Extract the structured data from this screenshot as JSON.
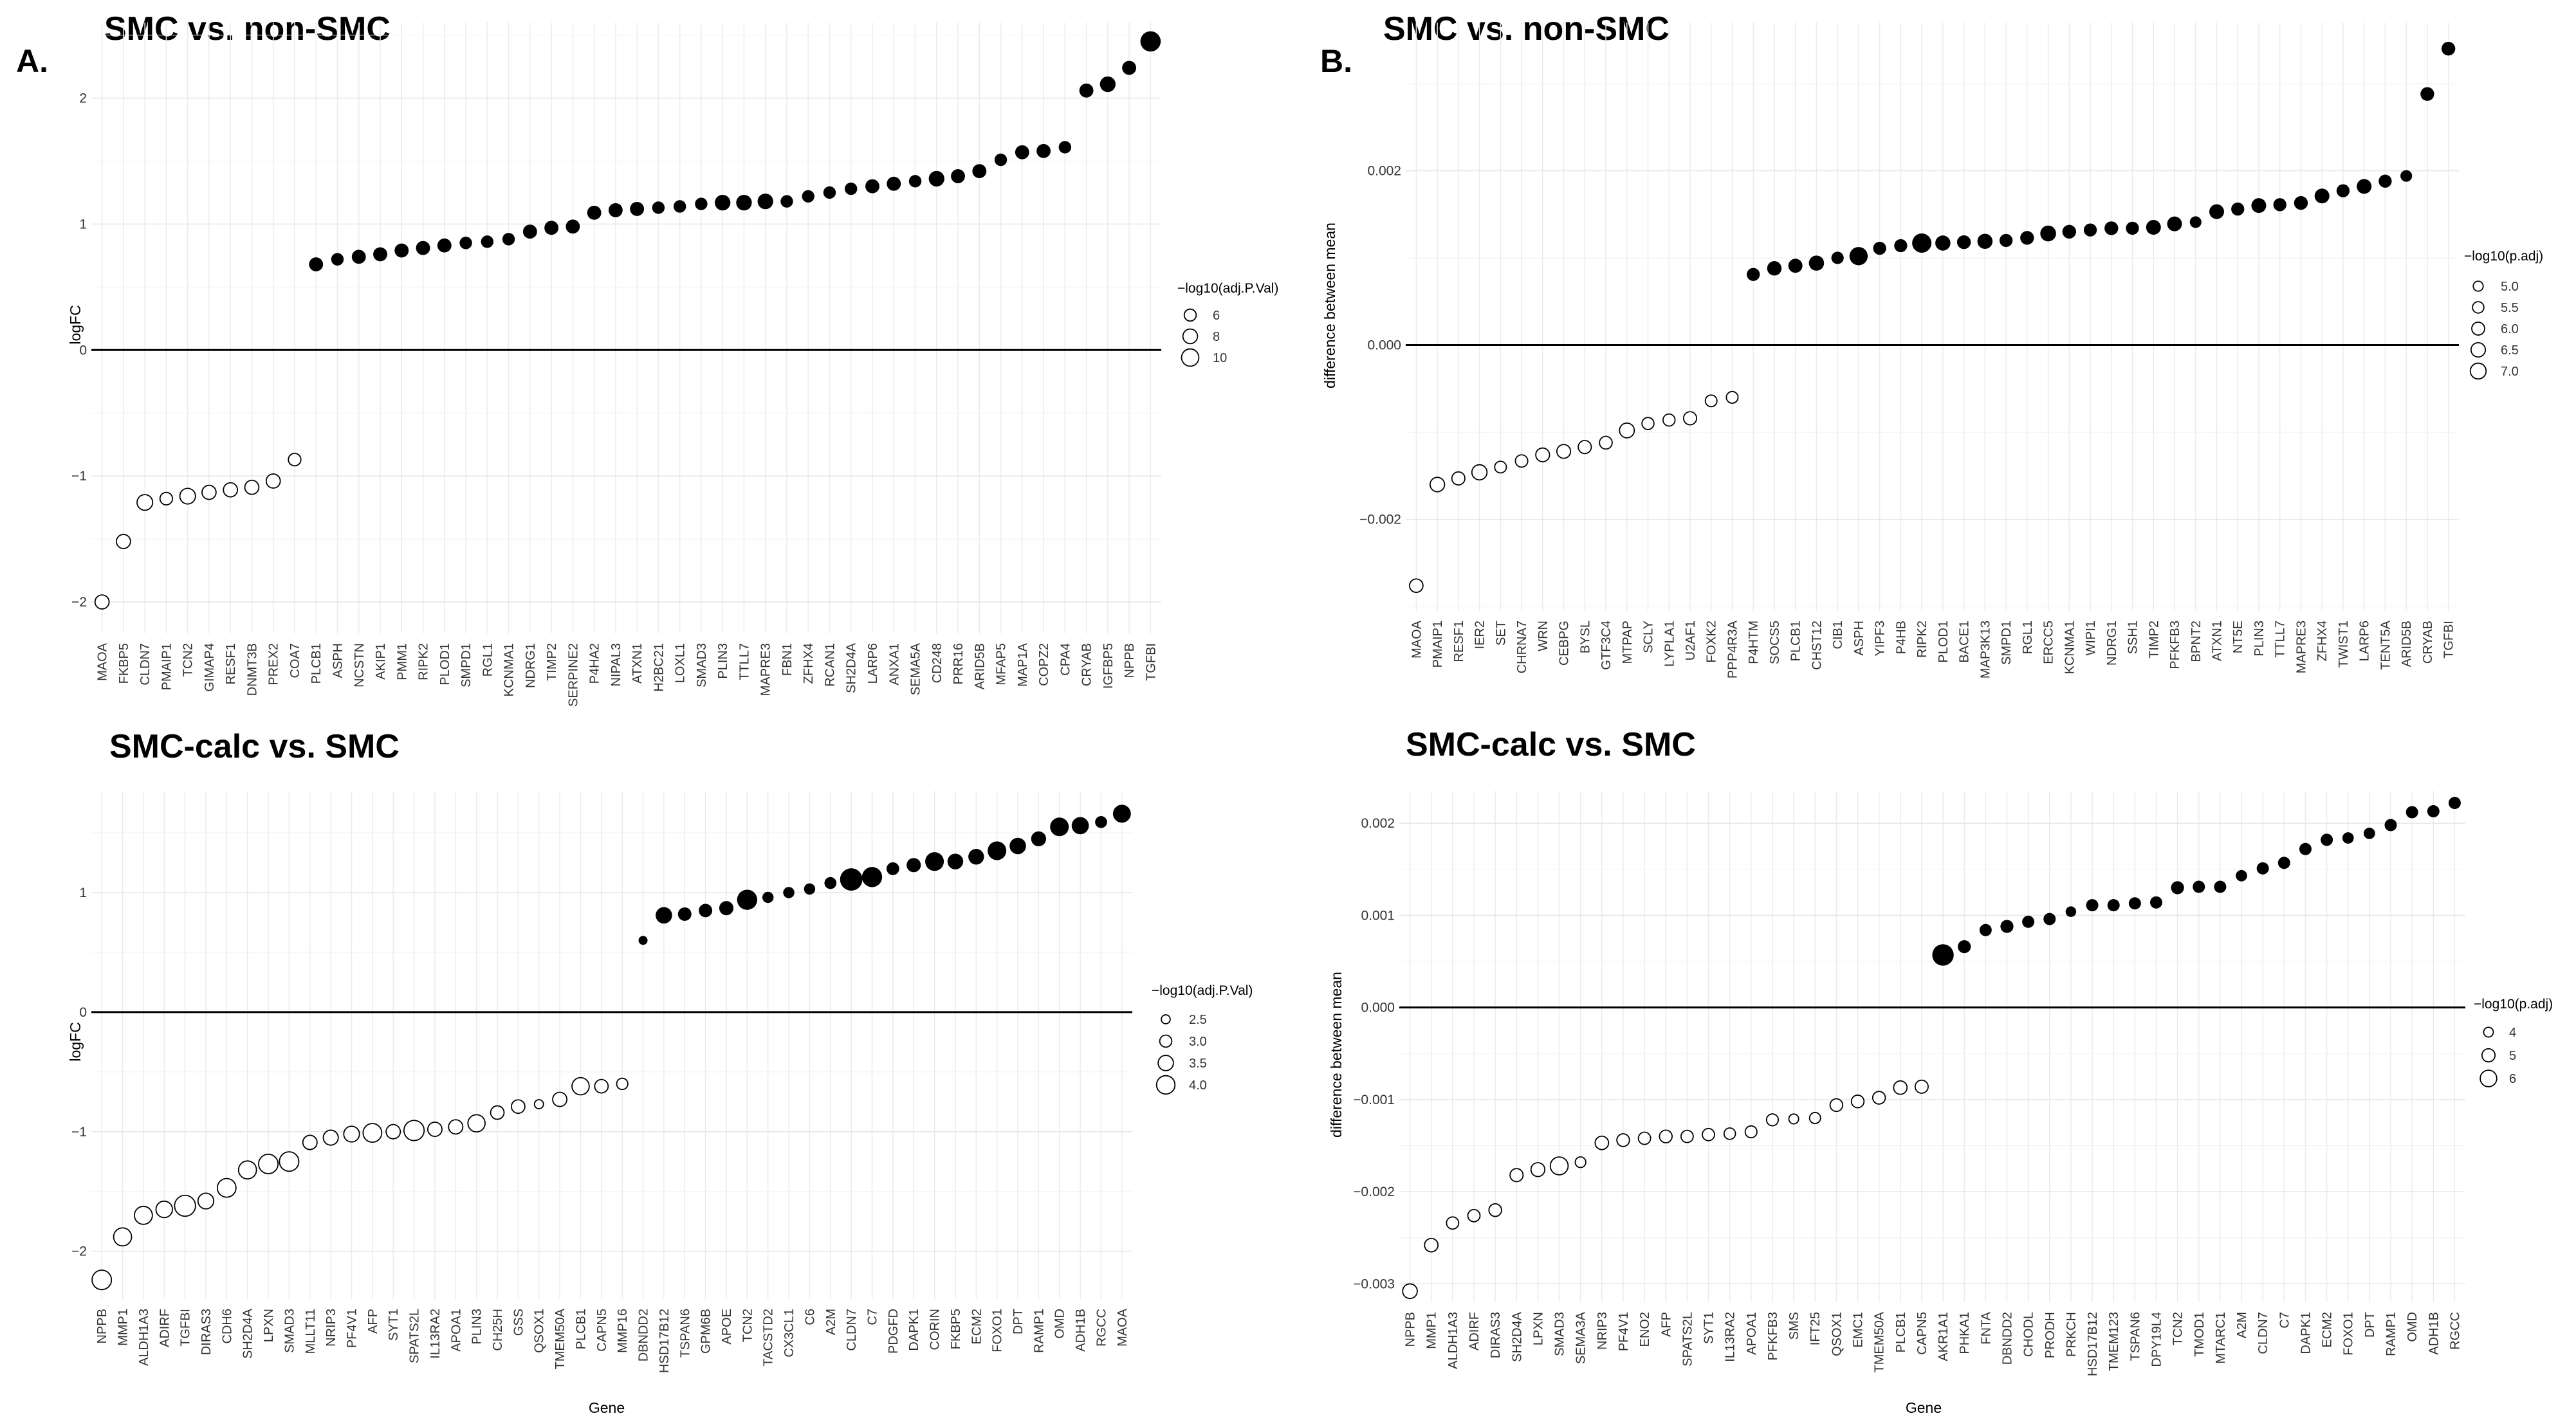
{
  "panels": [
    {
      "id": "tl",
      "label": "A.",
      "title": "SMC vs. non-SMC",
      "ylabel": "logFC",
      "xlabel": "",
      "legend_title": "−log10(adj.P.Val)",
      "legend_items": [
        {
          "label": "6",
          "size": 6
        },
        {
          "label": "8",
          "size": 8
        },
        {
          "label": "10",
          "size": 10
        }
      ],
      "yticks": [
        {
          "label": "−2",
          "v": -2
        },
        {
          "label": "−1",
          "v": -1
        },
        {
          "label": "0",
          "v": 0
        },
        {
          "label": "1",
          "v": 1
        },
        {
          "label": "2",
          "v": 2
        }
      ]
    },
    {
      "id": "tr",
      "label": "B.",
      "title": "SMC vs. non-SMC",
      "ylabel": "difference between mean",
      "xlabel": "",
      "legend_title": "−log10(p.adj)",
      "legend_items": [
        {
          "label": "5.0",
          "size": 5.0
        },
        {
          "label": "5.5",
          "size": 5.5
        },
        {
          "label": "6.0",
          "size": 6.0
        },
        {
          "label": "6.5",
          "size": 6.5
        },
        {
          "label": "7.0",
          "size": 7.0
        }
      ],
      "yticks": [
        {
          "label": "−0.002",
          "v": -0.002
        },
        {
          "label": "0.000",
          "v": 0
        },
        {
          "label": "0.002",
          "v": 0.002
        }
      ]
    },
    {
      "id": "bl",
      "label": "",
      "title": "SMC-calc vs. SMC",
      "ylabel": "logFC",
      "xlabel": "Gene",
      "legend_title": "−log10(adj.P.Val)",
      "legend_items": [
        {
          "label": "2.5",
          "size": 2.5
        },
        {
          "label": "3.0",
          "size": 3.0
        },
        {
          "label": "3.5",
          "size": 3.5
        },
        {
          "label": "4.0",
          "size": 4.0
        }
      ],
      "yticks": [
        {
          "label": "−2",
          "v": -2
        },
        {
          "label": "−1",
          "v": -1
        },
        {
          "label": "0",
          "v": 0
        },
        {
          "label": "1",
          "v": 1
        }
      ]
    },
    {
      "id": "br",
      "label": "",
      "title": "SMC-calc vs. SMC",
      "ylabel": "difference between mean",
      "xlabel": "Gene",
      "legend_title": "−log10(p.adj)",
      "legend_items": [
        {
          "label": "4",
          "size": 4
        },
        {
          "label": "5",
          "size": 5
        },
        {
          "label": "6",
          "size": 6
        }
      ],
      "yticks": [
        {
          "label": "−0.003",
          "v": -0.003
        },
        {
          "label": "−0.002",
          "v": -0.002
        },
        {
          "label": "−0.001",
          "v": -0.001
        },
        {
          "label": "0.000",
          "v": 0
        },
        {
          "label": "0.001",
          "v": 0.001
        },
        {
          "label": "0.002",
          "v": 0.002
        }
      ]
    }
  ],
  "chart_data": [
    {
      "type": "scatter",
      "title": "SMC vs. non-SMC",
      "xlabel": "",
      "ylabel": "logFC",
      "ylim": [
        -2.25,
        2.6
      ],
      "size_variable": "−log10(adj.P.Val)",
      "size_range": [
        4,
        11
      ],
      "filled_when": "positive",
      "genes": [
        "MAOA",
        "FKBP5",
        "CLDN7",
        "PMAIP1",
        "TCN2",
        "GIMAP4",
        "RESF1",
        "DNMT3B",
        "PREX2",
        "COA7",
        "PLCB1",
        "ASPH",
        "NCSTN",
        "AKIP1",
        "PMM1",
        "RIPK2",
        "PLOD1",
        "SMPD1",
        "RGL1",
        "KCNMA1",
        "NDRG1",
        "TIMP2",
        "SERPINE2",
        "P4HA2",
        "NIPAL3",
        "ATXN1",
        "H2BC21",
        "LOXL1",
        "SMAD3",
        "PLIN3",
        "TTLL7",
        "MAPRE3",
        "FBN1",
        "ZFHX4",
        "RCAN1",
        "SH2D4A",
        "LARP6",
        "ANXA1",
        "SEMA5A",
        "CD248",
        "PRR16",
        "ARID5B",
        "MFAP5",
        "MAP1A",
        "COPZ2",
        "CPA4",
        "CRYAB",
        "IGFBP5",
        "NPPB",
        "TGFBI"
      ],
      "values": [
        -2.0,
        -1.52,
        -1.21,
        -1.18,
        -1.16,
        -1.13,
        -1.11,
        -1.09,
        -1.04,
        -0.87,
        0.68,
        0.72,
        0.74,
        0.76,
        0.79,
        0.81,
        0.83,
        0.85,
        0.86,
        0.88,
        0.94,
        0.97,
        0.98,
        1.09,
        1.11,
        1.12,
        1.13,
        1.14,
        1.16,
        1.17,
        1.17,
        1.18,
        1.18,
        1.22,
        1.25,
        1.28,
        1.3,
        1.32,
        1.34,
        1.36,
        1.38,
        1.42,
        1.51,
        1.57,
        1.58,
        1.61,
        2.06,
        2.11,
        2.24,
        2.45
      ],
      "sizes": [
        6,
        6,
        7,
        5,
        7,
        6,
        6,
        6,
        6,
        5,
        6,
        5,
        6,
        6,
        6,
        6,
        6,
        5,
        5,
        5,
        6,
        6,
        6,
        6,
        6,
        6,
        5,
        5,
        5,
        7,
        7,
        7,
        5,
        5,
        5,
        5,
        6,
        6,
        5,
        7,
        6,
        6,
        5,
        6,
        6,
        5,
        6,
        7,
        6,
        10
      ]
    },
    {
      "type": "scatter",
      "title": "SMC vs. non-SMC",
      "xlabel": "",
      "ylabel": "difference between mean",
      "ylim": [
        -0.00305,
        0.0037
      ],
      "size_variable": "−log10(p.adj)",
      "size_range": [
        4.6,
        7.2
      ],
      "filled_when": "positive",
      "genes": [
        "MAOA",
        "PMAIP1",
        "RESF1",
        "IER2",
        "SET",
        "CHRNA7",
        "WRN",
        "CEBPG",
        "BYSL",
        "GTF3C4",
        "MTPAP",
        "SCLY",
        "LYPLA1",
        "U2AF1",
        "FOXK2",
        "PPP4R3A",
        "P4HTM",
        "SOCS5",
        "PLCB1",
        "CHST12",
        "CIB1",
        "ASPH",
        "YIPF3",
        "P4HB",
        "RIPK2",
        "PLOD1",
        "BACE1",
        "MAP3K13",
        "SMPD1",
        "RGL1",
        "ERCC5",
        "KCNMA1",
        "WIPI1",
        "NDRG1",
        "SSH1",
        "TIMP2",
        "PFKFB3",
        "BPNT2",
        "ATXN1",
        "NT5E",
        "PLIN3",
        "TTLL7",
        "MAPRE3",
        "ZFHX4",
        "TWIST1",
        "LARP6",
        "TENT5A",
        "ARID5B",
        "CRYAB",
        "TGFBI"
      ],
      "values": [
        -0.00276,
        -0.0016,
        -0.00153,
        -0.00146,
        -0.0014,
        -0.00133,
        -0.00126,
        -0.00122,
        -0.00117,
        -0.00112,
        -0.00098,
        -0.0009,
        -0.00086,
        -0.00084,
        -0.00064,
        -0.0006,
        0.00081,
        0.00088,
        0.00091,
        0.00094,
        0.001,
        0.00102,
        0.00111,
        0.00114,
        0.00117,
        0.00117,
        0.00118,
        0.00119,
        0.0012,
        0.00123,
        0.00128,
        0.0013,
        0.00132,
        0.00134,
        0.00134,
        0.00135,
        0.00139,
        0.00141,
        0.00153,
        0.00156,
        0.0016,
        0.00161,
        0.00163,
        0.00171,
        0.00177,
        0.00182,
        0.00188,
        0.00194,
        0.00288,
        0.0034
      ],
      "sizes": [
        5.5,
        5.8,
        5.4,
        6.0,
        5.0,
        5.2,
        5.6,
        5.6,
        5.4,
        5.3,
        5.9,
        5.1,
        5.1,
        5.4,
        5.0,
        5.0,
        5.4,
        5.8,
        5.7,
        6.0,
        5.2,
        6.9,
        5.4,
        5.4,
        7.2,
        6.0,
        5.6,
        6.0,
        5.4,
        5.6,
        6.2,
        5.6,
        5.4,
        5.6,
        5.4,
        5.9,
        5.9,
        5.0,
        5.9,
        5.4,
        5.9,
        5.4,
        5.6,
        5.9,
        5.4,
        5.9,
        5.4,
        5.0,
        5.6,
        5.6
      ]
    },
    {
      "type": "scatter",
      "title": "SMC-calc vs. SMC",
      "xlabel": "Gene",
      "ylabel": "logFC",
      "ylim": [
        -2.4,
        1.85
      ],
      "size_variable": "−log10(adj.P.Val)",
      "size_range": [
        2.3,
        4.2
      ],
      "filled_when": "positive",
      "genes": [
        "NPPB",
        "MMP1",
        "ALDH1A3",
        "ADIRF",
        "TGFBI",
        "DIRAS3",
        "CDH6",
        "SH2D4A",
        "LPXN",
        "SMAD3",
        "MLLT11",
        "NRIP3",
        "PF4V1",
        "AFP",
        "SYT1",
        "SPATS2L",
        "IL13RA2",
        "APOA1",
        "PLIN3",
        "CH25H",
        "GSS",
        "QSOX1",
        "TMEM50A",
        "PLCB1",
        "CAPN5",
        "MMP16",
        "DBNDD2",
        "HSD17B12",
        "TSPAN6",
        "GPM6B",
        "APOE",
        "TCN2",
        "TACSTD2",
        "CX3CL1",
        "C6",
        "A2M",
        "CLDN7",
        "C7",
        "PDGFD",
        "DAPK1",
        "CORIN",
        "FKBP5",
        "ECM2",
        "FOXO1",
        "DPT",
        "RAMP1",
        "OMD",
        "ADH1B",
        "RGCC",
        "MAOA"
      ],
      "values": [
        -2.24,
        -1.88,
        -1.7,
        -1.65,
        -1.62,
        -1.58,
        -1.47,
        -1.32,
        -1.27,
        -1.25,
        -1.09,
        -1.05,
        -1.02,
        -1.01,
        -1.0,
        -0.99,
        -0.98,
        -0.96,
        -0.93,
        -0.84,
        -0.79,
        -0.77,
        -0.73,
        -0.62,
        -0.62,
        -0.6,
        0.6,
        0.81,
        0.82,
        0.85,
        0.87,
        0.94,
        0.96,
        1.0,
        1.03,
        1.08,
        1.11,
        1.13,
        1.2,
        1.23,
        1.26,
        1.26,
        1.3,
        1.35,
        1.39,
        1.45,
        1.55,
        1.56,
        1.59,
        1.66
      ],
      "sizes": [
        3.7,
        3.5,
        3.5,
        3.3,
        3.9,
        3.2,
        3.6,
        3.5,
        3.7,
        3.7,
        3.0,
        3.1,
        3.2,
        3.6,
        3.0,
        3.8,
        3.0,
        3.0,
        3.4,
        2.9,
        2.9,
        2.3,
        3.0,
        3.4,
        2.9,
        2.6,
        2.3,
        3.3,
        2.9,
        2.9,
        3.0,
        3.8,
        2.6,
        2.6,
        2.6,
        2.7,
        4.1,
        3.8,
        2.8,
        3.0,
        3.6,
        3.2,
        3.2,
        3.6,
        3.3,
        3.1,
        3.6,
        3.4,
        2.7,
        3.5
      ]
    },
    {
      "type": "scatter",
      "title": "SMC-calc vs. SMC",
      "xlabel": "Gene",
      "ylabel": "difference between mean",
      "ylim": [
        -0.0032,
        0.00235
      ],
      "size_variable": "−log10(p.adj)",
      "size_range": [
        3.4,
        6.6
      ],
      "filled_when": "positive",
      "genes": [
        "NPPB",
        "MMP1",
        "ALDH1A3",
        "ADIRF",
        "DIRAS3",
        "SH2D4A",
        "LPXN",
        "SMAD3",
        "SEMA3A",
        "NRIP3",
        "PF4V1",
        "ENO2",
        "AFP",
        "SPATS2L",
        "SYT1",
        "IL13RA2",
        "APOA1",
        "PFKFB3",
        "SMS",
        "IFT25",
        "QSOX1",
        "EMC1",
        "TMEM50A",
        "PLCB1",
        "CAPN5",
        "AKR1A1",
        "PHKA1",
        "FNTA",
        "DBNDD2",
        "CHODL",
        "PRODH",
        "PRKCH",
        "HSD17B12",
        "TMEM123",
        "TSPAN6",
        "DPY19L4",
        "TCN2",
        "TMOD1",
        "MTARC1",
        "A2M",
        "CLDN7",
        "C7",
        "DAPK1",
        "ECM2",
        "FOXO1",
        "DPT",
        "RAMP1",
        "OMD",
        "ADH1B",
        "RGCC"
      ],
      "values": [
        -0.00308,
        -0.00258,
        -0.00234,
        -0.00226,
        -0.0022,
        -0.00182,
        -0.00176,
        -0.00172,
        -0.00168,
        -0.00147,
        -0.00144,
        -0.00142,
        -0.0014,
        -0.0014,
        -0.00138,
        -0.00137,
        -0.00135,
        -0.00122,
        -0.00121,
        -0.0012,
        -0.00106,
        -0.00102,
        -0.00098,
        -0.00087,
        -0.00086,
        0.00057,
        0.00066,
        0.00084,
        0.00088,
        0.00093,
        0.00096,
        0.00104,
        0.00111,
        0.00111,
        0.00113,
        0.00114,
        0.0013,
        0.00131,
        0.00131,
        0.00143,
        0.00151,
        0.00157,
        0.00172,
        0.00182,
        0.00184,
        0.00189,
        0.00198,
        0.00212,
        0.00213,
        0.00222
      ],
      "sizes": [
        4.8,
        4.5,
        4.2,
        4.2,
        4.3,
        4.4,
        4.6,
        5.6,
        3.8,
        4.5,
        4.3,
        4.2,
        4.3,
        4.2,
        4.2,
        4.0,
        4.1,
        4.1,
        3.6,
        3.9,
        4.3,
        4.3,
        4.3,
        4.5,
        4.4,
        6.5,
        4.4,
        4.2,
        4.4,
        4.2,
        4.2,
        3.8,
        4.2,
        4.2,
        4.2,
        4.2,
        4.4,
        4.2,
        4.2,
        4.0,
        4.2,
        4.2,
        4.2,
        4.2,
        4.0,
        4.0,
        4.2,
        4.2,
        4.2,
        4.2
      ]
    }
  ]
}
